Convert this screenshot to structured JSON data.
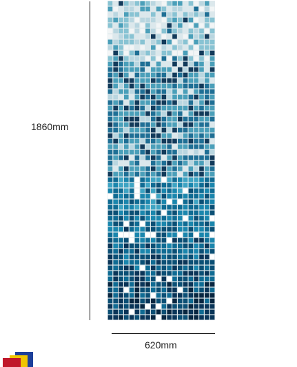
{
  "dimensions": {
    "height_label": "1860mm",
    "width_label": "620mm"
  },
  "mosaic": {
    "palette_top": [
      "#f2f5f6",
      "#dbe8ec",
      "#b9d6e0",
      "#88c3d3",
      "#4a9fb9",
      "#1f6f95",
      "#123a5a"
    ],
    "palette_bottom": [
      "#ffffff",
      "#3ea4c3",
      "#1a86ad",
      "#0f6b93",
      "#0b4f75",
      "#0a3558",
      "#082640"
    ]
  },
  "logo": {
    "colors": [
      "#c0172a",
      "#f0c500",
      "#1c3f9a"
    ]
  }
}
